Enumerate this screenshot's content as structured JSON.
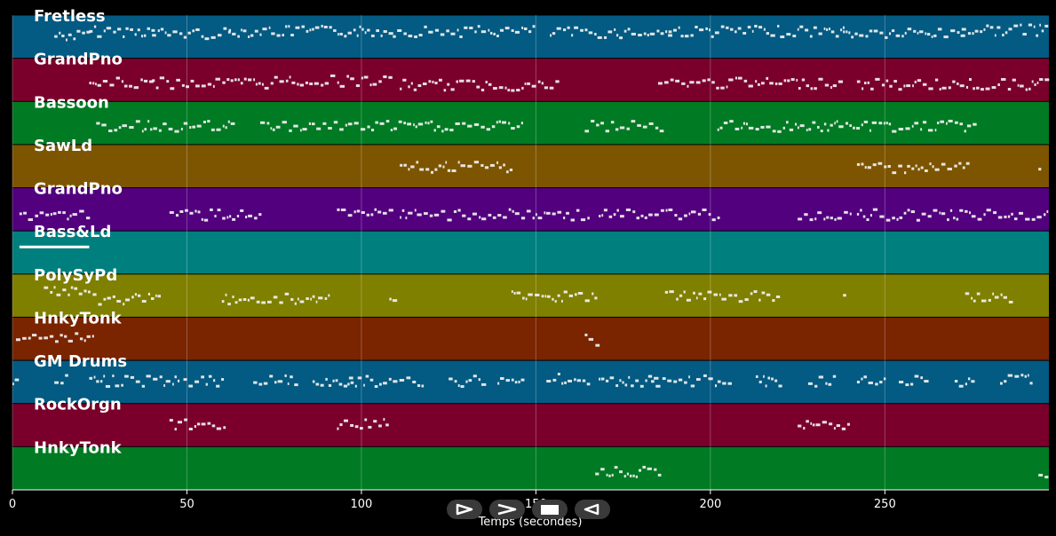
{
  "chart_data": {
    "type": "piano-roll",
    "xlabel": "Temps (secondes)",
    "xlim": [
      0,
      297
    ],
    "xticks": [
      0,
      50,
      100,
      150,
      200,
      250
    ],
    "grid": true,
    "tracks": [
      {
        "name": "Fretless",
        "color": "#035a82",
        "notes": [
          [
            12,
            22,
            0.45
          ],
          [
            22,
            40,
            0.35
          ],
          [
            40,
            62,
            0.4
          ],
          [
            62,
            109,
            0.35
          ],
          [
            109,
            150,
            0.35
          ],
          [
            154,
            188,
            0.38
          ],
          [
            188,
            238,
            0.35
          ],
          [
            238,
            272,
            0.4
          ],
          [
            272,
            297,
            0.32
          ]
        ]
      },
      {
        "name": "GrandPno",
        "color": "#7a002b",
        "notes": [
          [
            22,
            40,
            0.55
          ],
          [
            40,
            75,
            0.55
          ],
          [
            75,
            108,
            0.5
          ],
          [
            111,
            157,
            0.6
          ],
          [
            185,
            238,
            0.55
          ],
          [
            242,
            297,
            0.58
          ]
        ]
      },
      {
        "name": "Bassoon",
        "color": "#007a23",
        "notes": [
          [
            24,
            63,
            0.55
          ],
          [
            71,
            146,
            0.55
          ],
          [
            164,
            187,
            0.55
          ],
          [
            202,
            276,
            0.55
          ]
        ]
      },
      {
        "name": "SawLd",
        "color": "#7d5500",
        "notes": [
          [
            111,
            143,
            0.5
          ],
          [
            242,
            274,
            0.5
          ],
          [
            294,
            295,
            0.6
          ]
        ]
      },
      {
        "name": "GrandPno",
        "color": "#52007e",
        "notes": [
          [
            2,
            22,
            0.6
          ],
          [
            45,
            71,
            0.6
          ],
          [
            93,
            108,
            0.6
          ],
          [
            111,
            165,
            0.6
          ],
          [
            168,
            203,
            0.6
          ],
          [
            225,
            240,
            0.6
          ],
          [
            242,
            297,
            0.6
          ]
        ]
      },
      {
        "name": "Bass&Ld",
        "color": "#007f7f",
        "notes": [
          [
            2,
            22,
            0.3
          ]
        ]
      },
      {
        "name": "PolySyPd",
        "color": "#7f7f00",
        "notes": [
          [
            9,
            22,
            0.4
          ],
          [
            23,
            42,
            0.55
          ],
          [
            60,
            91,
            0.55
          ],
          [
            108,
            109,
            0.55
          ],
          [
            143,
            167,
            0.5
          ],
          [
            187,
            220,
            0.5
          ],
          [
            238,
            239,
            0.55
          ],
          [
            273,
            287,
            0.5
          ]
        ]
      },
      {
        "name": "HnkyTonk",
        "color": "#7a2400",
        "notes": [
          [
            1,
            23,
            0.45
          ],
          [
            164,
            168,
            0.5
          ]
        ]
      },
      {
        "name": "GM Drums",
        "color": "#035a82",
        "notes": [
          [
            0,
            2,
            0.4
          ],
          [
            12,
            16,
            0.4
          ],
          [
            22,
            48,
            0.45
          ],
          [
            49,
            60,
            0.45
          ],
          [
            69,
            82,
            0.45
          ],
          [
            86,
            98,
            0.45
          ],
          [
            96,
            108,
            0.45
          ],
          [
            109,
            118,
            0.45
          ],
          [
            125,
            135,
            0.45
          ],
          [
            139,
            146,
            0.45
          ],
          [
            153,
            165,
            0.4
          ],
          [
            168,
            184,
            0.45
          ],
          [
            183,
            196,
            0.45
          ],
          [
            198,
            206,
            0.45
          ],
          [
            213,
            221,
            0.45
          ],
          [
            228,
            236,
            0.45
          ],
          [
            242,
            250,
            0.45
          ],
          [
            254,
            262,
            0.45
          ],
          [
            270,
            276,
            0.45
          ],
          [
            283,
            292,
            0.4
          ]
        ]
      },
      {
        "name": "RockOrgn",
        "color": "#7a002b",
        "notes": [
          [
            45,
            61,
            0.45
          ],
          [
            93,
            107,
            0.45
          ],
          [
            225,
            240,
            0.45
          ]
        ]
      },
      {
        "name": "HnkyTonk",
        "color": "#007a23",
        "notes": [
          [
            167,
            186,
            0.55
          ],
          [
            294,
            297,
            0.55
          ]
        ]
      }
    ]
  },
  "controls": [
    {
      "name": "play-forward-button",
      "icon": "triangle-right-outline"
    },
    {
      "name": "next-button",
      "icon": "chevron-right"
    },
    {
      "name": "stop-button",
      "icon": "square"
    },
    {
      "name": "play-backward-button",
      "icon": "triangle-left-outline"
    }
  ]
}
